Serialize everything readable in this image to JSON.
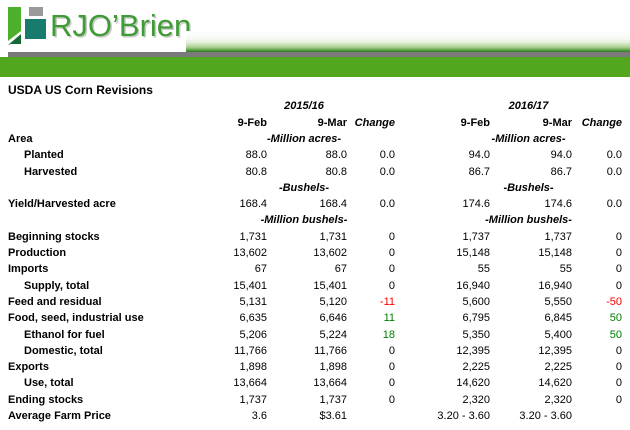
{
  "brand": {
    "logo_text": "RJO’Brien",
    "logo_icon": "rjo-brien-flag-icon"
  },
  "colors": {
    "brand_text_green": "#3f9b35",
    "icon_bright_green": "#4cb02c",
    "icon_teal": "#177c6e",
    "icon_dark_green": "#156937",
    "icon_gray": "#9a9a9a",
    "banner_green": "#52a71e",
    "rule_gray": "#7a7a7a",
    "negative": "#ff0000",
    "positive": "#008000"
  },
  "title": "USDA US Corn Revisions",
  "table": {
    "year_headers": [
      "2015/16",
      "2016/17"
    ],
    "columns": {
      "feb": "9-Feb",
      "mar": "9-Mar",
      "change": "Change"
    },
    "rows": [
      {
        "type": "unit",
        "label": "Area",
        "indent": 0,
        "unit": "-Million acres-"
      },
      {
        "type": "data",
        "label": "Planted",
        "indent": 1,
        "values": [
          "88.0",
          "88.0",
          "0.0",
          "94.0",
          "94.0",
          "0.0"
        ]
      },
      {
        "type": "data",
        "label": "Harvested",
        "indent": 1,
        "values": [
          "80.8",
          "80.8",
          "0.0",
          "86.7",
          "86.7",
          "0.0"
        ]
      },
      {
        "type": "unit",
        "label": "",
        "indent": 0,
        "unit": "-Bushels-"
      },
      {
        "type": "data",
        "label": "Yield/Harvested acre",
        "indent": 0,
        "values": [
          "168.4",
          "168.4",
          "0.0",
          "174.6",
          "174.6",
          "0.0"
        ]
      },
      {
        "type": "unit",
        "label": "",
        "indent": 0,
        "unit": "-Million bushels-"
      },
      {
        "type": "data",
        "label": "Beginning stocks",
        "indent": 0,
        "values": [
          "1,731",
          "1,731",
          "0",
          "1,737",
          "1,737",
          "0"
        ]
      },
      {
        "type": "data",
        "label": "Production",
        "indent": 0,
        "values": [
          "13,602",
          "13,602",
          "0",
          "15,148",
          "15,148",
          "0"
        ]
      },
      {
        "type": "data",
        "label": "Imports",
        "indent": 0,
        "values": [
          "67",
          "67",
          "0",
          "55",
          "55",
          "0"
        ]
      },
      {
        "type": "data",
        "label": "Supply, total",
        "indent": 1,
        "values": [
          "15,401",
          "15,401",
          "0",
          "16,940",
          "16,940",
          "0"
        ]
      },
      {
        "type": "data",
        "label": "Feed and residual",
        "indent": 0,
        "values": [
          "5,131",
          "5,120",
          "-11",
          "5,600",
          "5,550",
          "-50"
        ]
      },
      {
        "type": "data",
        "label": "Food, seed, industrial use",
        "indent": 0,
        "values": [
          "6,635",
          "6,646",
          "11",
          "6,795",
          "6,845",
          "50"
        ]
      },
      {
        "type": "data",
        "label": "Ethanol for fuel",
        "indent": 1,
        "values": [
          "5,206",
          "5,224",
          "18",
          "5,350",
          "5,400",
          "50"
        ]
      },
      {
        "type": "data",
        "label": "Domestic, total",
        "indent": 1,
        "values": [
          "11,766",
          "11,766",
          "0",
          "12,395",
          "12,395",
          "0"
        ]
      },
      {
        "type": "data",
        "label": "Exports",
        "indent": 0,
        "values": [
          "1,898",
          "1,898",
          "0",
          "2,225",
          "2,225",
          "0"
        ]
      },
      {
        "type": "data",
        "label": "Use, total",
        "indent": 1,
        "values": [
          "13,664",
          "13,664",
          "0",
          "14,620",
          "14,620",
          "0"
        ]
      },
      {
        "type": "data",
        "label": "Ending stocks",
        "indent": 0,
        "values": [
          "1,737",
          "1,737",
          "0",
          "2,320",
          "2,320",
          "0"
        ]
      },
      {
        "type": "data",
        "label": "Average Farm Price",
        "indent": 0,
        "values": [
          "3.6",
          "$3.61",
          "",
          "3.20 - 3.60",
          "3.20 - 3.60",
          ""
        ]
      }
    ]
  }
}
